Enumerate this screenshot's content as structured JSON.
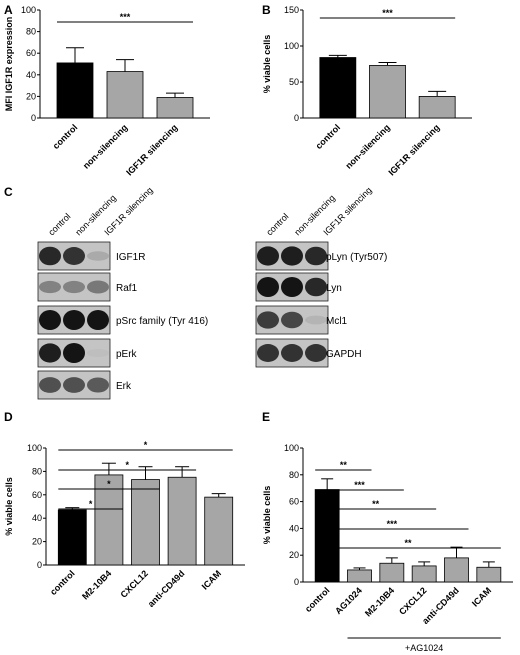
{
  "panels": {
    "A": "A",
    "B": "B",
    "C": "C",
    "D": "D",
    "E": "E"
  },
  "chart_data": [
    {
      "id": "A",
      "type": "bar",
      "ylabel": "MFI IGF1R expression",
      "ylim": [
        0,
        100
      ],
      "yticks": [
        0,
        20,
        40,
        60,
        80,
        100
      ],
      "categories": [
        "control",
        "non-silencing",
        "IGF1R silencing"
      ],
      "values": [
        51,
        43,
        19
      ],
      "errors": [
        14,
        11,
        4
      ],
      "colors": [
        "#000000",
        "#a6a6a6",
        "#a6a6a6"
      ],
      "significance": [
        {
          "from": 0,
          "to": 2,
          "label": "***"
        }
      ]
    },
    {
      "id": "B",
      "type": "bar",
      "ylabel": "% viable cells",
      "ylim": [
        0,
        150
      ],
      "yticks": [
        0,
        50,
        100,
        150
      ],
      "categories": [
        "control",
        "non-silencing",
        "IGF1R silencing"
      ],
      "values": [
        84,
        73,
        30
      ],
      "errors": [
        3,
        4,
        7
      ],
      "colors": [
        "#000000",
        "#a6a6a6",
        "#a6a6a6"
      ],
      "significance": [
        {
          "from": 0,
          "to": 2,
          "label": "***"
        }
      ]
    },
    {
      "id": "D",
      "type": "bar",
      "ylabel": "% viable cells",
      "ylim": [
        0,
        100
      ],
      "yticks": [
        0,
        20,
        40,
        60,
        80,
        100
      ],
      "categories": [
        "control",
        "M2-10B4",
        "CXCL12",
        "anti-CD49d",
        "ICAM"
      ],
      "values": [
        47,
        77,
        73,
        75,
        58
      ],
      "errors": [
        2,
        10,
        11,
        9,
        3
      ],
      "colors": [
        "#000000",
        "#a6a6a6",
        "#a6a6a6",
        "#a6a6a6",
        "#a6a6a6"
      ],
      "significance": [
        {
          "from": 0,
          "to": 1,
          "label": "*"
        },
        {
          "from": 0,
          "to": 2,
          "label": "*"
        },
        {
          "from": 0,
          "to": 3,
          "label": "*"
        },
        {
          "from": 0,
          "to": 4,
          "label": "*"
        }
      ]
    },
    {
      "id": "E",
      "type": "bar",
      "ylabel": "% viable cells",
      "ylim": [
        0,
        100
      ],
      "yticks": [
        0,
        20,
        40,
        60,
        80,
        100
      ],
      "categories": [
        "control",
        "AG1024",
        "M2-10B4",
        "CXCL12",
        "anti-CD49d",
        "ICAM"
      ],
      "values": [
        69,
        9,
        14,
        12,
        18,
        11
      ],
      "errors": [
        8,
        1.5,
        4,
        3,
        8,
        4
      ],
      "colors": [
        "#000000",
        "#a6a6a6",
        "#a6a6a6",
        "#a6a6a6",
        "#a6a6a6",
        "#a6a6a6"
      ],
      "significance": [
        {
          "from": 0,
          "to": 1,
          "label": "**"
        },
        {
          "from": 0,
          "to": 2,
          "label": "***"
        },
        {
          "from": 0,
          "to": 3,
          "label": "**"
        },
        {
          "from": 0,
          "to": 4,
          "label": "***"
        },
        {
          "from": 0,
          "to": 5,
          "label": "**"
        }
      ],
      "group_label": "+AG1024"
    }
  ],
  "blots": {
    "lanes": [
      "control",
      "non-silencing",
      "IGF1R silencing"
    ],
    "left": [
      {
        "label": "IGF1R",
        "intensity": [
          0.9,
          0.85,
          0.25
        ]
      },
      {
        "label": "Raf1",
        "intensity": [
          0.45,
          0.45,
          0.5
        ]
      },
      {
        "label": "pSrc family (Tyr 416)",
        "intensity": [
          1.0,
          1.0,
          1.0
        ]
      },
      {
        "label": "pErk",
        "intensity": [
          0.95,
          1.0,
          0.15
        ]
      },
      {
        "label": "Erk",
        "intensity": [
          0.7,
          0.7,
          0.65
        ]
      }
    ],
    "right": [
      {
        "label": "pLyn (Tyr507)",
        "intensity": [
          0.95,
          0.95,
          0.9
        ]
      },
      {
        "label": "Lyn",
        "intensity": [
          1.0,
          1.0,
          0.9
        ]
      },
      {
        "label": "Mcl1",
        "intensity": [
          0.8,
          0.75,
          0.2
        ]
      },
      {
        "label": "GAPDH",
        "intensity": [
          0.85,
          0.85,
          0.85
        ]
      }
    ]
  }
}
